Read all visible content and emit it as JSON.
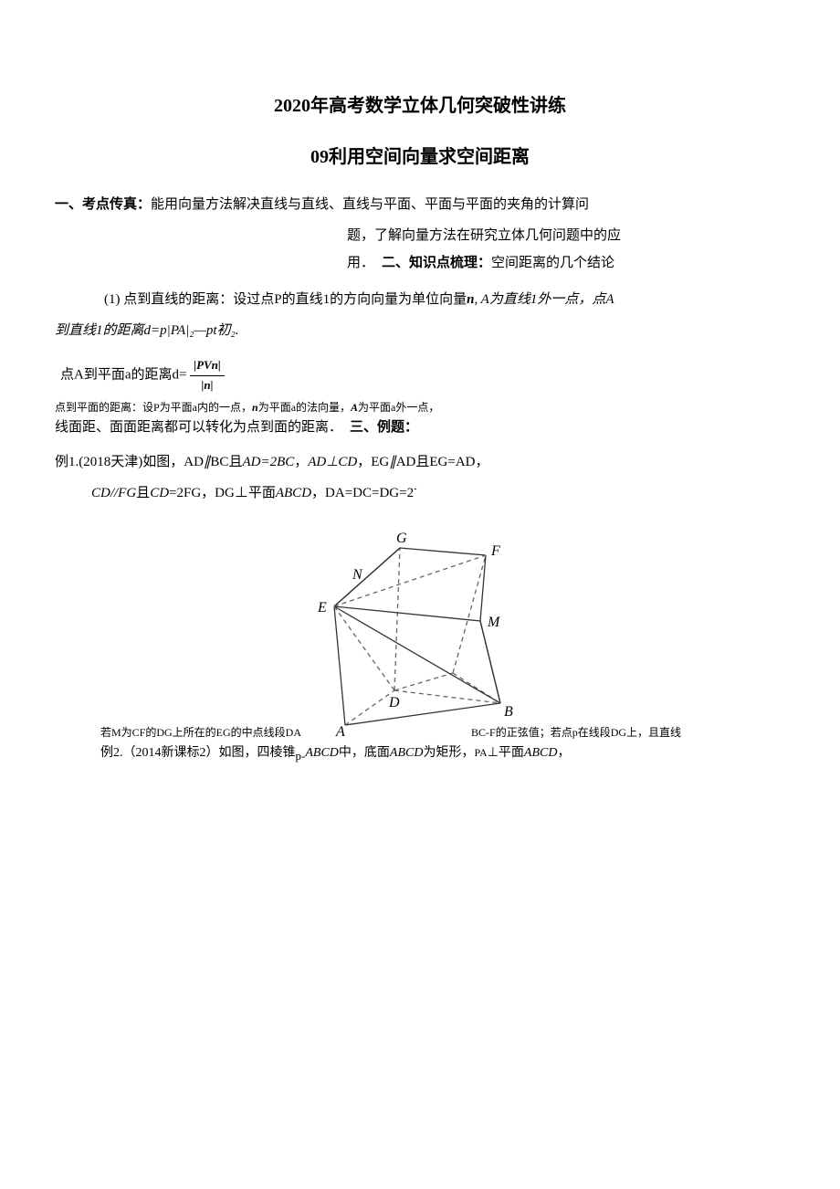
{
  "title": "2020年高考数学立体几何突破性讲练",
  "subtitle": "09利用空间向量求空间距离",
  "section1": {
    "heading": "一、考点传真：",
    "line1": "能用向量方法解决直线与直线、直线与平面、平面与平面的夹角的计算问",
    "line2": "题，了解向量方法在研究立体几何问题中的应",
    "line3_prefix": "用．"
  },
  "section2": {
    "heading": "二、知识点梳理：",
    "tail": "空间距离的几个结论"
  },
  "item1": {
    "label": "(1)",
    "text_a": " 点到直线的距离：设过点P的直线1的方向向量为单位向量",
    "bold_n": "n",
    "text_b": ", A为直线1外一点，点A",
    "line2": "到直线1的距离d=p|PA|₂—pt初₂."
  },
  "item2": {
    "line1_a": "点A到平面a的距离d=",
    "frac_num": "|PVn|",
    "frac_den": "|n|",
    "line2_small_a": "点到平面的距离：设P为平面a内的一点，",
    "line2_bold": "n",
    "line2_small_b": "为平面a的法向量，",
    "line2_bold2": "A",
    "line2_small_c": "为平面a外一点，",
    "line3_a": "线面距、面面距离都可以转化为点到面的距离．"
  },
  "section3": {
    "heading": "三、例题："
  },
  "example1": {
    "label": "例1.(2018天津)如图，",
    "t1": "AD∥BC且AD=2BC，",
    "t2": "AD⊥CD，",
    "t3": "EG∥AD且EG=AD，",
    "line2": "CD//FG且CD=2FG，DG⊥平面ABCD，DA=DC=DG=2"
  },
  "figure": {
    "labels": {
      "G": "G",
      "F": "F",
      "N": "N",
      "E": "E",
      "M": "M",
      "D": "D",
      "B": "B",
      "A": "A"
    },
    "colors": {
      "solid": "#333333",
      "dash": "#666666",
      "label": "#000000"
    },
    "stroke_width": 1.3,
    "dash_pattern": "5,4",
    "label_fontsize": 16,
    "label_font": "italic 16px Times New Roman"
  },
  "caption": {
    "left": "若M为CF的DG上所在的EG的中点线段DA",
    "right": "BC-F的正弦值；若点p在线段DG上，且直线"
  },
  "example2": {
    "text_a": "例2.（2014新课标2）如图，四棱锥",
    "text_b": "p-ABCD中，底面ABCD为矩形，",
    "text_c": "PA⊥平面ABCD，"
  }
}
